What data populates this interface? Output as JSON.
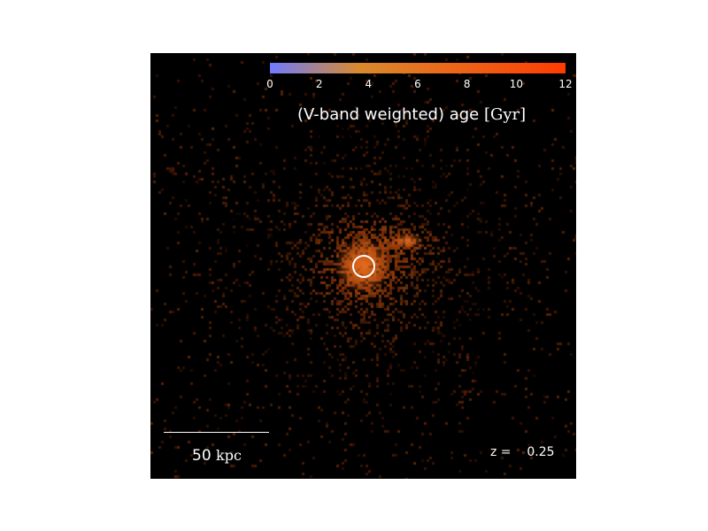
{
  "colorbar": {
    "ticks": [
      "0",
      "2",
      "4",
      "6",
      "8",
      "10",
      "12"
    ],
    "range": [
      0,
      12
    ],
    "colors": [
      "#6f7bff",
      "#d98a2e",
      "#ff3c00"
    ],
    "title_text": "(V-band weighted) age ",
    "title_unit": "[Gyr]"
  },
  "scale_bar": {
    "value": "50",
    "unit": "kpc"
  },
  "redshift": {
    "label": "z =",
    "value": "0.25"
  },
  "colors": {
    "background": "#000000",
    "marker": "#ffffff",
    "pixel": "#d2691e"
  }
}
